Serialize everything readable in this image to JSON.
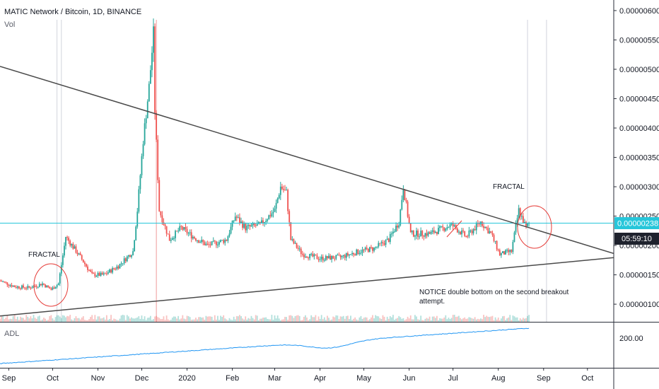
{
  "header": {
    "title": "MATIC Network / Bitcoin, 1D, BINANCE",
    "volume_label": "Vol"
  },
  "sub_panel": {
    "label": "ADL",
    "value_label": "200.00"
  },
  "price_badge": {
    "price": "0.00000238",
    "countdown": "05:59:10",
    "color": "#26c6da",
    "countdown_color": "#1e222d"
  },
  "annotations": {
    "fractal_left": "FRACTAL",
    "fractal_right": "FRACTAL",
    "notice_line1": "NOTICE double bottom on the second breakout",
    "notice_line2": "attempt."
  },
  "colors": {
    "up": "#26a69a",
    "down": "#ef5350",
    "trendline": "#4a4a4a",
    "adl": "#2196f3",
    "circle": "#e53935",
    "price_line": "#26c6da"
  },
  "chart_data": {
    "type": "candlestick",
    "x_tick_labels": [
      "Sep",
      "Oct",
      "Nov",
      "Dec",
      "2020",
      "Feb",
      "Mar",
      "Apr",
      "May",
      "Jun",
      "Jul",
      "Aug",
      "Sep",
      "Oct"
    ],
    "y_tick_labels": [
      "0.00000600",
      "0.00000550",
      "0.00000500",
      "0.00000450",
      "0.00000400",
      "0.00000350",
      "0.00000300",
      "0.00000250",
      "0.00000200",
      "0.00000150",
      "0.00000100"
    ],
    "ylim": [
      7e-07,
      6.18e-06
    ],
    "x_start": "2019-08-26",
    "x_end": "2020-10-19",
    "last_price": 2.38e-06,
    "price_path": [
      [
        "2019-08-26",
        1.4e-06
      ],
      [
        "2019-09-05",
        1.3e-06
      ],
      [
        "2019-09-15",
        1.28e-06
      ],
      [
        "2019-09-24",
        1.35e-06
      ],
      [
        "2019-09-30",
        1.25e-06
      ],
      [
        "2019-10-05",
        1.35e-06
      ],
      [
        "2019-10-10",
        2.15e-06
      ],
      [
        "2019-10-20",
        1.8e-06
      ],
      [
        "2019-10-28",
        1.5e-06
      ],
      [
        "2019-11-05",
        1.5e-06
      ],
      [
        "2019-11-15",
        1.65e-06
      ],
      [
        "2019-11-25",
        1.9e-06
      ],
      [
        "2019-11-28",
        2.6e-06
      ],
      [
        "2019-12-02",
        3.8e-06
      ],
      [
        "2019-12-06",
        4.7e-06
      ],
      [
        "2019-12-09",
        5.6e-06
      ],
      [
        "2019-12-10",
        4.3e-06
      ],
      [
        "2019-12-13",
        2.6e-06
      ],
      [
        "2019-12-20",
        2.1e-06
      ],
      [
        "2019-12-28",
        2.3e-06
      ],
      [
        "2020-01-05",
        2.15e-06
      ],
      [
        "2020-01-15",
        2e-06
      ],
      [
        "2020-01-28",
        2.1e-06
      ],
      [
        "2020-02-03",
        2.5e-06
      ],
      [
        "2020-02-10",
        2.3e-06
      ],
      [
        "2020-02-20",
        2.35e-06
      ],
      [
        "2020-03-01",
        2.6e-06
      ],
      [
        "2020-03-05",
        3e-06
      ],
      [
        "2020-03-09",
        2.9e-06
      ],
      [
        "2020-03-12",
        2.1e-06
      ],
      [
        "2020-03-20",
        1.85e-06
      ],
      [
        "2020-04-01",
        1.78e-06
      ],
      [
        "2020-04-15",
        1.8e-06
      ],
      [
        "2020-04-28",
        1.9e-06
      ],
      [
        "2020-05-08",
        1.95e-06
      ],
      [
        "2020-05-18",
        2.1e-06
      ],
      [
        "2020-05-25",
        2.4e-06
      ],
      [
        "2020-05-28",
        3e-06
      ],
      [
        "2020-06-02",
        2.2e-06
      ],
      [
        "2020-06-15",
        2.2e-06
      ],
      [
        "2020-06-30",
        2.35e-06
      ],
      [
        "2020-07-10",
        2.15e-06
      ],
      [
        "2020-07-20",
        2.4e-06
      ],
      [
        "2020-07-27",
        2.2e-06
      ],
      [
        "2020-08-02",
        1.85e-06
      ],
      [
        "2020-08-10",
        1.9e-06
      ],
      [
        "2020-08-15",
        2.6e-06
      ],
      [
        "2020-08-20",
        2.3e-06
      ],
      [
        "2020-08-22",
        2.38e-06
      ]
    ],
    "trendlines": [
      {
        "points": [
          [
            "2019-08-26",
            5.05e-06
          ],
          [
            "2020-10-01",
            2e-06
          ]
        ]
      },
      {
        "points": [
          [
            "2019-08-26",
            8e-07
          ],
          [
            "2020-10-01",
            1.75e-06
          ]
        ]
      }
    ],
    "adl_label": "ADL",
    "adl_value": 200.0
  }
}
